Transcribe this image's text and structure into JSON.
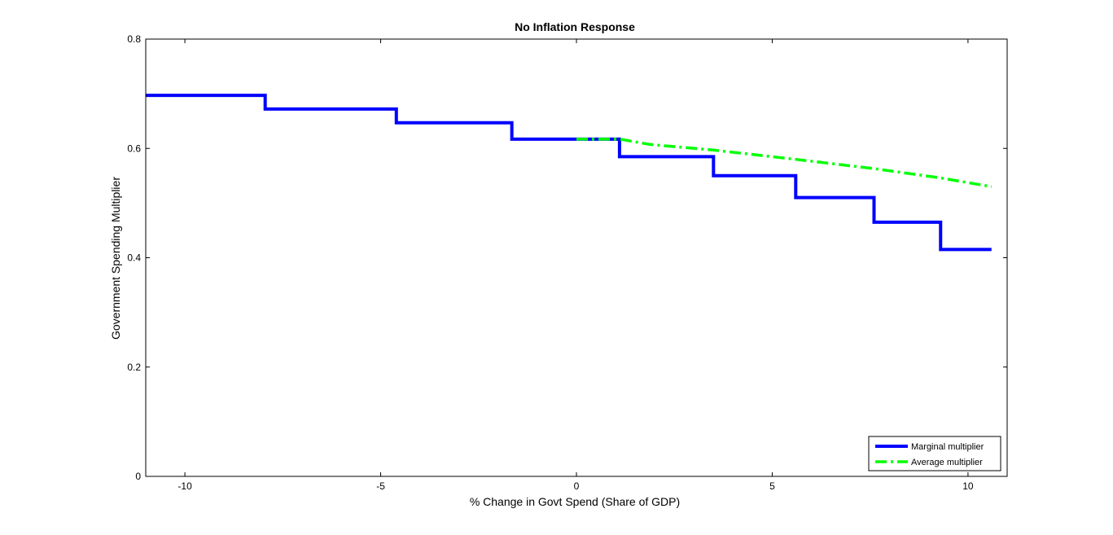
{
  "chart_data": {
    "type": "line",
    "title": "No Inflation Response",
    "xlabel": "% Change in Govt Spend (Share of GDP)",
    "ylabel": "Government Spending Multiplier",
    "xlim": [
      -11,
      11
    ],
    "ylim": [
      0,
      0.8
    ],
    "xticks": [
      -10,
      -5,
      0,
      5,
      10
    ],
    "yticks": [
      0,
      0.2,
      0.4,
      0.6,
      0.8
    ],
    "xtick_labels": [
      "-10",
      "-5",
      "0",
      "5",
      "10"
    ],
    "ytick_labels": [
      "0",
      "0.2",
      "0.4",
      "0.6",
      "0.8"
    ],
    "legend_position": "bottom-right",
    "series": [
      {
        "name": "Marginal multiplier",
        "color": "#0000ff",
        "style": "solid",
        "x": [
          -11,
          -7.95,
          -7.95,
          -4.6,
          -4.6,
          -1.65,
          -1.65,
          1.1,
          1.1,
          3.5,
          3.5,
          5.6,
          5.6,
          7.6,
          7.6,
          9.3,
          9.3,
          10.6
        ],
        "y": [
          0.697,
          0.697,
          0.672,
          0.672,
          0.647,
          0.647,
          0.617,
          0.617,
          0.585,
          0.585,
          0.55,
          0.55,
          0.51,
          0.51,
          0.465,
          0.465,
          0.415,
          0.415
        ]
      },
      {
        "name": "Average multiplier",
        "color": "#00ff00",
        "style": "dashdot",
        "x": [
          0,
          1.1,
          1.9,
          3.5,
          5.6,
          7.6,
          9.3,
          10.6
        ],
        "y": [
          0.617,
          0.617,
          0.607,
          0.597,
          0.58,
          0.563,
          0.546,
          0.53
        ]
      }
    ]
  }
}
